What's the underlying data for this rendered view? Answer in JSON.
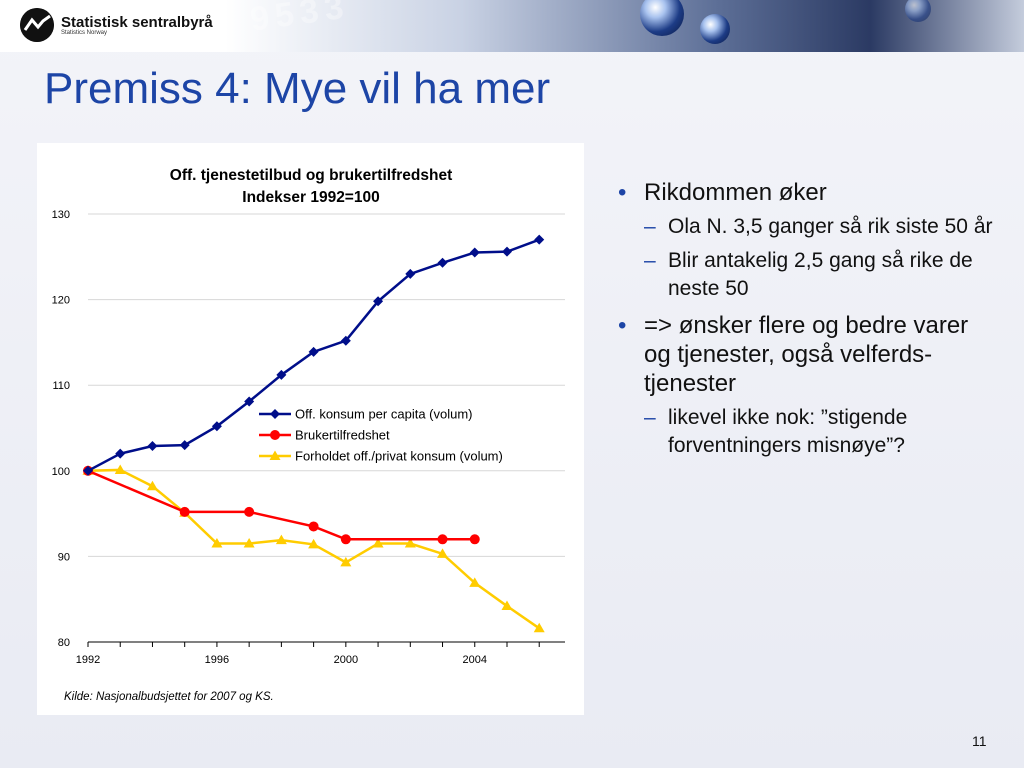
{
  "header": {
    "brand_name": "Statistisk sentralbyrå",
    "brand_sub": "Statistics Norway",
    "background_digits": "9533"
  },
  "title": "Premiss 4: Mye vil ha mer",
  "chart_data": {
    "type": "line",
    "title": "Off. tjenestetilbud og brukertilfredshet",
    "subtitle": "Indekser 1992=100",
    "ylim": [
      80,
      130
    ],
    "yticks": [
      "80",
      "90",
      "100",
      "110",
      "120",
      "130"
    ],
    "xlim": [
      1992,
      2006.8
    ],
    "xticks": [
      "1992",
      "1996",
      "2000",
      "2004"
    ],
    "grid": true,
    "legend_position": "center-right",
    "series": [
      {
        "name": "Off. konsum per capita (volum)",
        "color": "#000e8a",
        "marker": "diamond",
        "x": [
          1992,
          1993,
          1994,
          1995,
          1996,
          1997,
          1998,
          1999,
          2000,
          2001,
          2002,
          2003,
          2004,
          2005,
          2006
        ],
        "y": [
          100,
          102,
          102.9,
          103,
          105.2,
          108.1,
          111.2,
          113.9,
          115.2,
          119.8,
          123,
          124.3,
          125.5,
          125.6,
          127
        ]
      },
      {
        "name": "Brukertilfredshet",
        "color": "#ff0000",
        "marker": "circle",
        "x": [
          1992,
          1995,
          1997,
          1999,
          2000,
          2003,
          2004
        ],
        "y": [
          100,
          95.2,
          95.2,
          93.5,
          92,
          92,
          92
        ]
      },
      {
        "name": "Forholdet off./privat konsum (volum)",
        "color": "#ffcc00",
        "marker": "triangle",
        "x": [
          1992,
          1993,
          1994,
          1995,
          1996,
          1997,
          1998,
          1999,
          2000,
          2001,
          2002,
          2003,
          2004,
          2005,
          2006
        ],
        "y": [
          100,
          100.1,
          98.2,
          95.1,
          91.5,
          91.5,
          91.9,
          91.4,
          89.3,
          91.5,
          91.5,
          90.3,
          86.9,
          84.2,
          81.6
        ]
      }
    ],
    "source": "Kilde: Nasjonalbudsjettet for 2007 og KS."
  },
  "bullets": [
    {
      "text": "Rikdommen øker",
      "sub": [
        "Ola N. 3,5 ganger så rik siste 50 år",
        "Blir antakelig 2,5 gang så rike de neste 50"
      ]
    },
    {
      "text": "=> ønsker flere og bedre varer og tjenester, også velferds-tjenester",
      "sub": [
        "likevel ikke nok: ”stigende forventningers misnøye”?"
      ]
    }
  ],
  "page_number": "11"
}
